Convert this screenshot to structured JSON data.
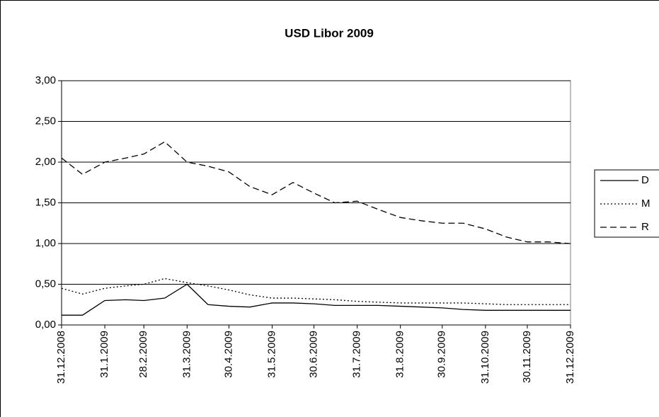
{
  "chart_data": {
    "type": "line",
    "title": "USD Libor 2009",
    "x": [
      "31.12.2008",
      "15.1.2009",
      "31.1.2009",
      "15.2.2009",
      "28.2.2009",
      "15.3.2009",
      "31.3.2009",
      "15.4.2009",
      "30.4.2009",
      "15.5.2009",
      "31.5.2009",
      "15.6.2009",
      "30.6.2009",
      "15.7.2009",
      "31.7.2009",
      "15.8.2009",
      "31.8.2009",
      "15.9.2009",
      "30.9.2009",
      "15.10.2009",
      "31.10.2009",
      "15.11.2009",
      "30.11.2009",
      "15.12.2009",
      "31.12.2009"
    ],
    "series": [
      {
        "name": "D",
        "color": "#000000",
        "dash": "solid",
        "values": [
          0.12,
          0.12,
          0.3,
          0.31,
          0.3,
          0.33,
          0.5,
          0.25,
          0.23,
          0.22,
          0.27,
          0.27,
          0.26,
          0.24,
          0.24,
          0.24,
          0.23,
          0.22,
          0.21,
          0.19,
          0.18,
          0.18,
          0.18,
          0.18,
          0.18
        ]
      },
      {
        "name": "M",
        "color": "#000000",
        "dash": "dotted",
        "values": [
          0.45,
          0.38,
          0.45,
          0.48,
          0.5,
          0.57,
          0.52,
          0.48,
          0.43,
          0.37,
          0.33,
          0.33,
          0.32,
          0.31,
          0.29,
          0.28,
          0.27,
          0.27,
          0.27,
          0.27,
          0.26,
          0.25,
          0.25,
          0.25,
          0.25
        ]
      },
      {
        "name": "R",
        "color": "#000000",
        "dash": "dashed",
        "values": [
          2.05,
          1.85,
          2.0,
          2.05,
          2.1,
          2.25,
          2.0,
          1.95,
          1.88,
          1.7,
          1.6,
          1.75,
          1.62,
          1.5,
          1.52,
          1.42,
          1.32,
          1.28,
          1.25,
          1.25,
          1.18,
          1.08,
          1.02,
          1.02,
          1.0
        ]
      }
    ],
    "xlim": [
      "31.12.2008",
      "31.12.2009"
    ],
    "xticks": [
      "31.12.2008",
      "31.1.2009",
      "28.2.2009",
      "31.3.2009",
      "30.4.2009",
      "31.5.2009",
      "30.6.2009",
      "31.7.2009",
      "31.8.2009",
      "30.9.2009",
      "31.10.2009",
      "30.11.2009",
      "31.12.2009"
    ],
    "ylim": [
      0,
      3
    ],
    "yticks": [
      {
        "value": 0,
        "label": "0,00"
      },
      {
        "value": 0.5,
        "label": "0,50"
      },
      {
        "value": 1,
        "label": "1,00"
      },
      {
        "value": 1.5,
        "label": "1,50"
      },
      {
        "value": 2,
        "label": "2,00"
      },
      {
        "value": 2.5,
        "label": "2,50"
      },
      {
        "value": 3,
        "label": "3,00"
      }
    ],
    "grid": true,
    "legend": "right"
  }
}
